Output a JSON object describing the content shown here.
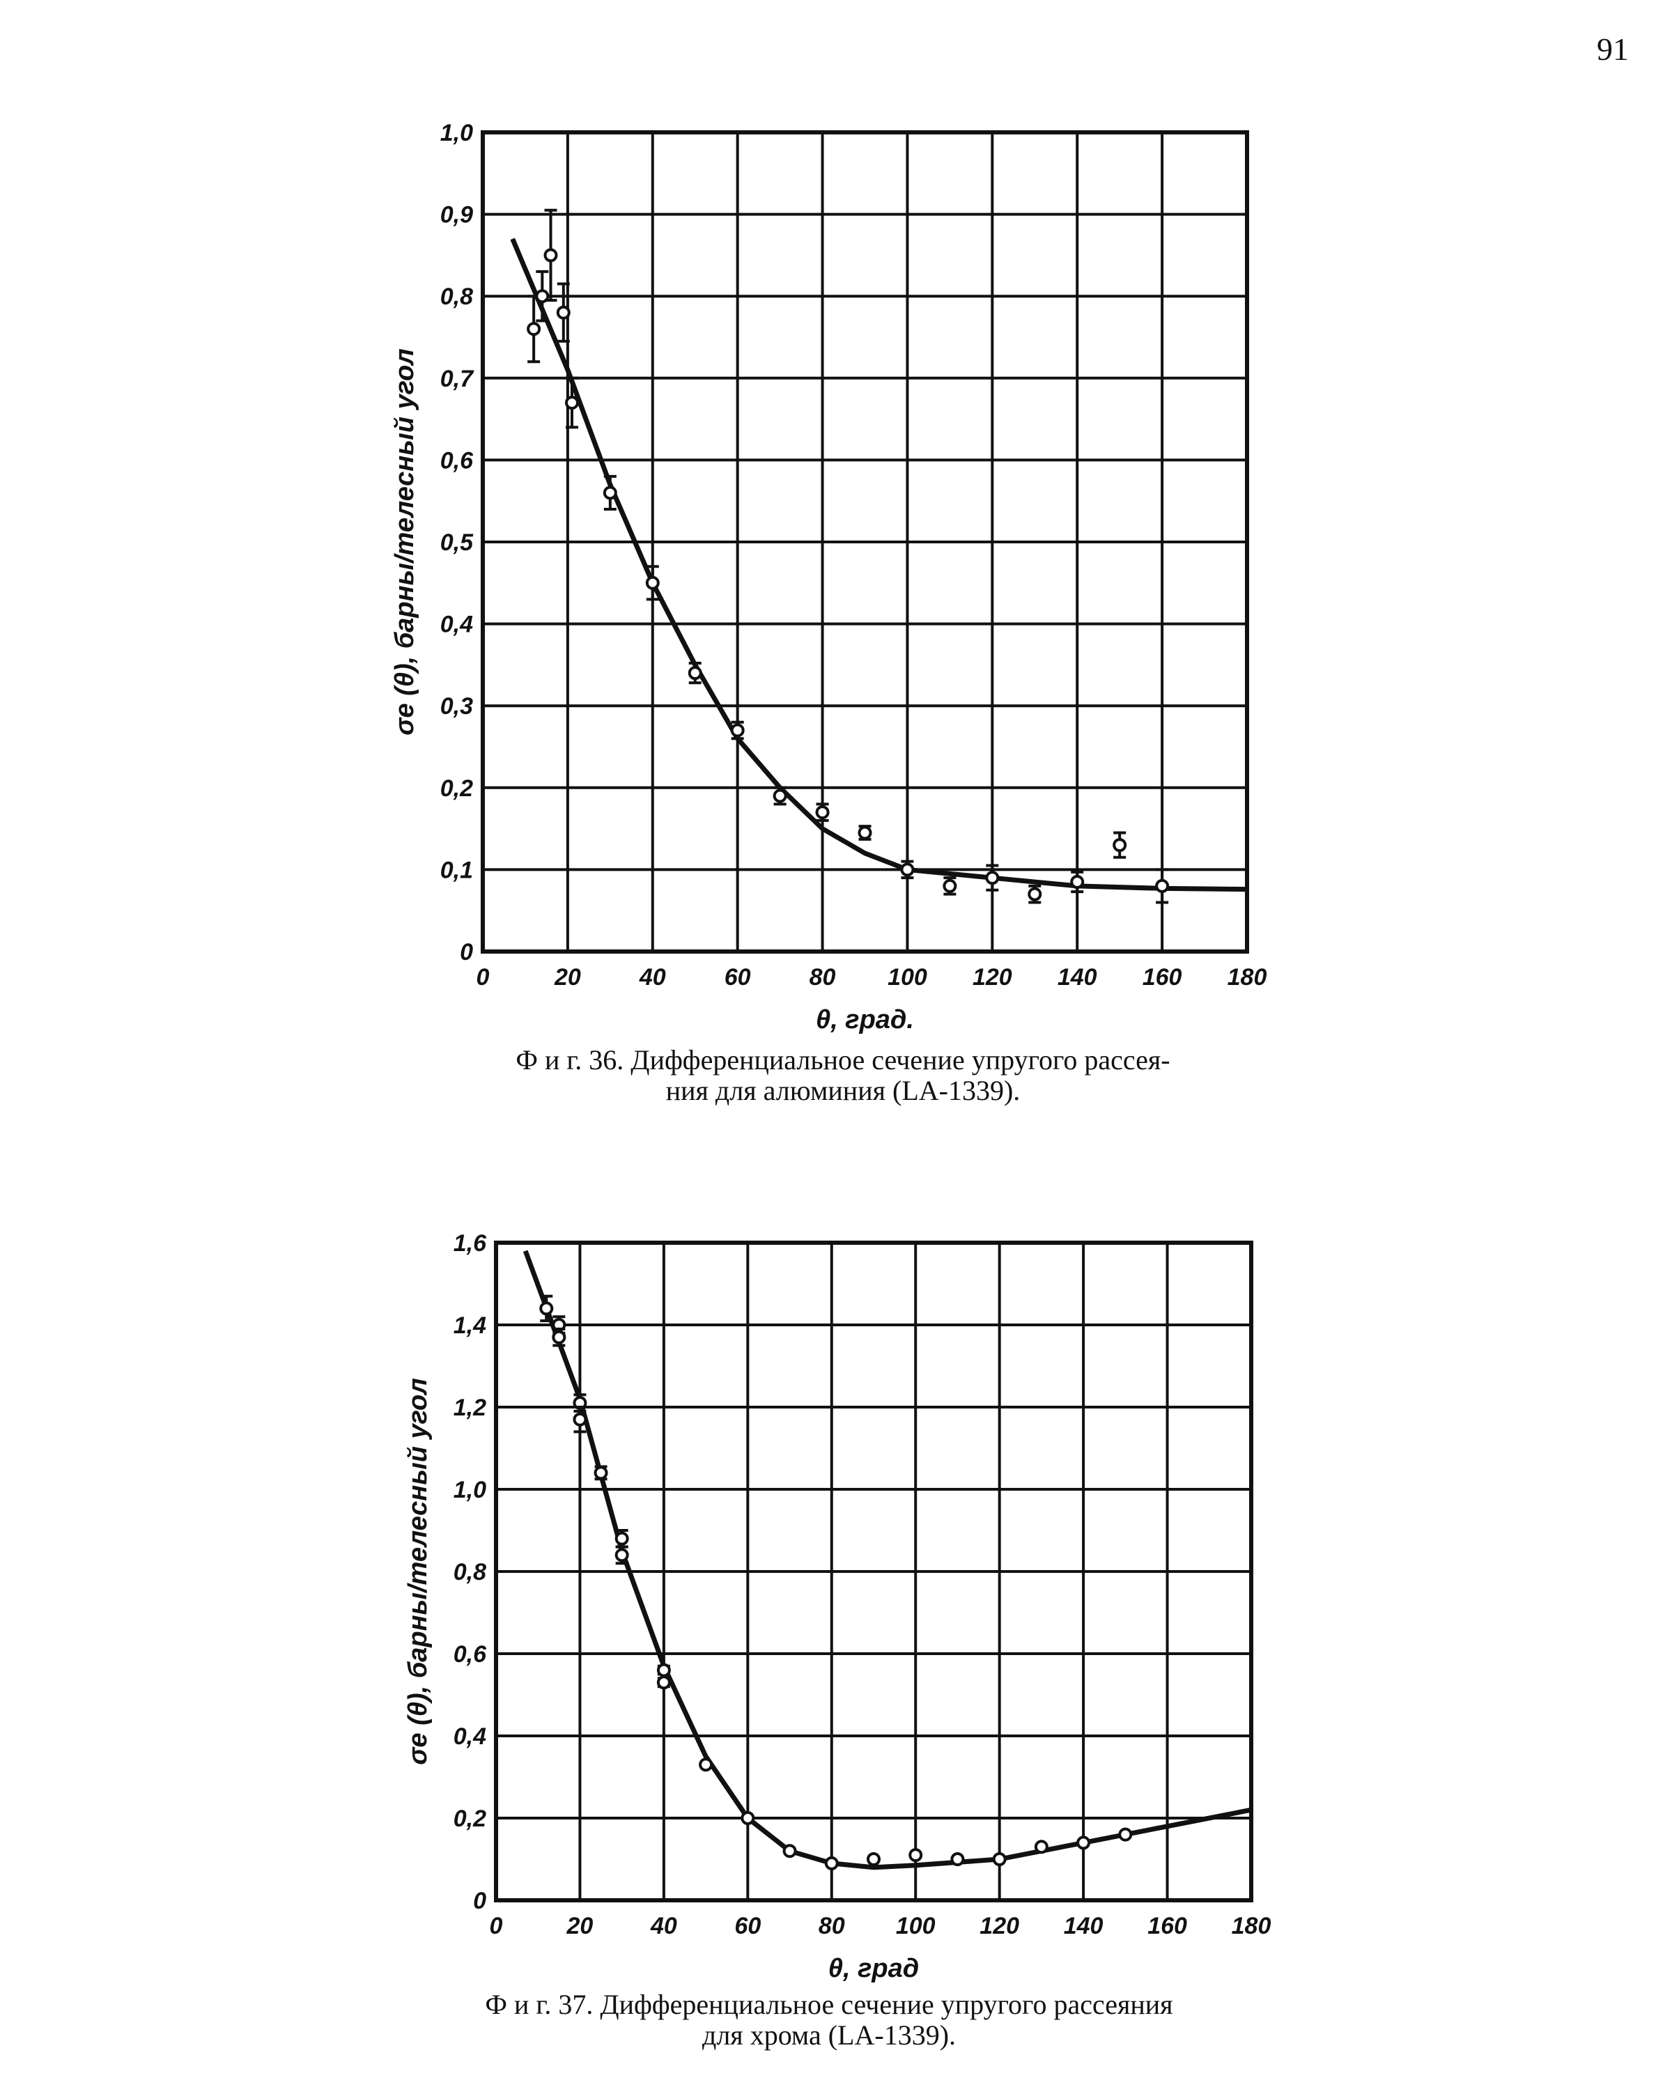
{
  "page_number": "91",
  "chart_data": [
    {
      "type": "scatter",
      "title": "Фиг. 36. Дифференциальное сечение упругого рассеяния для алюминия (LA-1339).",
      "caption_line1": "Ф и г.  36.  Дифференциальное  сечение  упругого  рассея-",
      "caption_line2": "ния для алюминия (LA-1339).",
      "xlabel": "θ, град.",
      "ylabel": "σe (θ), барны/телесный угол",
      "xlim": [
        0,
        180
      ],
      "ylim": [
        0,
        1.0
      ],
      "xticks": [
        "0",
        "20",
        "40",
        "60",
        "80",
        "100",
        "120",
        "140",
        "160",
        "180"
      ],
      "yticks": [
        "0",
        "0,1",
        "0,2",
        "0,3",
        "0,4",
        "0,5",
        "0,6",
        "0,7",
        "0,8",
        "0,9",
        "1,0"
      ],
      "grid": true,
      "points": [
        [
          12,
          0.76,
          0.04
        ],
        [
          14,
          0.8,
          0.03
        ],
        [
          16,
          0.85,
          0.055
        ],
        [
          19,
          0.78,
          0.035
        ],
        [
          21,
          0.67,
          0.03
        ],
        [
          30,
          0.56,
          0.02
        ],
        [
          40,
          0.45,
          0.02
        ],
        [
          50,
          0.34,
          0.012
        ],
        [
          60,
          0.27,
          0.01
        ],
        [
          70,
          0.19,
          0.01
        ],
        [
          80,
          0.17,
          0.01
        ],
        [
          90,
          0.145,
          0.008
        ],
        [
          100,
          0.1,
          0.01
        ],
        [
          110,
          0.08,
          0.01
        ],
        [
          120,
          0.09,
          0.015
        ],
        [
          130,
          0.07,
          0.01
        ],
        [
          140,
          0.085,
          0.012
        ],
        [
          150,
          0.13,
          0.015
        ],
        [
          160,
          0.08,
          0.02
        ]
      ],
      "curve": [
        [
          7,
          0.87
        ],
        [
          20,
          0.71
        ],
        [
          30,
          0.57
        ],
        [
          40,
          0.45
        ],
        [
          50,
          0.35
        ],
        [
          60,
          0.26
        ],
        [
          70,
          0.2
        ],
        [
          80,
          0.15
        ],
        [
          90,
          0.12
        ],
        [
          100,
          0.1
        ],
        [
          110,
          0.095
        ],
        [
          120,
          0.09
        ],
        [
          140,
          0.08
        ],
        [
          160,
          0.077
        ],
        [
          180,
          0.076
        ]
      ]
    },
    {
      "type": "scatter",
      "title": "Фиг. 37. Дифференциальное сечение упругого рассеяния для хрома (LA-1339).",
      "caption_line1": "Ф и г.  37.  Дифференциальное  сечение  упругого  рассеяния",
      "caption_line2": "для хрома (LA-1339).",
      "xlabel": "θ, град",
      "ylabel": "σe (θ), барны/телесный угол",
      "xlim": [
        0,
        180
      ],
      "ylim": [
        0,
        1.6
      ],
      "xticks": [
        "0",
        "20",
        "40",
        "60",
        "80",
        "100",
        "120",
        "140",
        "160",
        "180"
      ],
      "yticks": [
        "0",
        "0,2",
        "0,4",
        "0,6",
        "0,8",
        "1,0",
        "1,2",
        "1,4",
        "1,6"
      ],
      "grid": true,
      "points": [
        [
          12,
          1.44,
          0.03
        ],
        [
          15,
          1.4,
          0.02
        ],
        [
          15,
          1.37,
          0.02
        ],
        [
          20,
          1.21,
          0.02
        ],
        [
          20,
          1.17,
          0.03
        ],
        [
          25,
          1.04,
          0.015
        ],
        [
          30,
          0.88,
          0.02
        ],
        [
          30,
          0.84,
          0.02
        ],
        [
          40,
          0.56,
          0.01
        ],
        [
          40,
          0.53,
          0.01
        ],
        [
          50,
          0.33,
          0
        ],
        [
          60,
          0.2,
          0
        ],
        [
          70,
          0.12,
          0
        ],
        [
          80,
          0.09,
          0
        ],
        [
          90,
          0.1,
          0
        ],
        [
          100,
          0.11,
          0
        ],
        [
          110,
          0.1,
          0
        ],
        [
          120,
          0.1,
          0
        ],
        [
          130,
          0.13,
          0
        ],
        [
          140,
          0.14,
          0
        ],
        [
          150,
          0.16,
          0
        ]
      ],
      "curve": [
        [
          7,
          1.58
        ],
        [
          20,
          1.22
        ],
        [
          30,
          0.85
        ],
        [
          40,
          0.57
        ],
        [
          50,
          0.35
        ],
        [
          60,
          0.2
        ],
        [
          70,
          0.12
        ],
        [
          80,
          0.09
        ],
        [
          90,
          0.08
        ],
        [
          100,
          0.085
        ],
        [
          120,
          0.1
        ],
        [
          140,
          0.14
        ],
        [
          160,
          0.18
        ],
        [
          180,
          0.22
        ]
      ]
    }
  ]
}
